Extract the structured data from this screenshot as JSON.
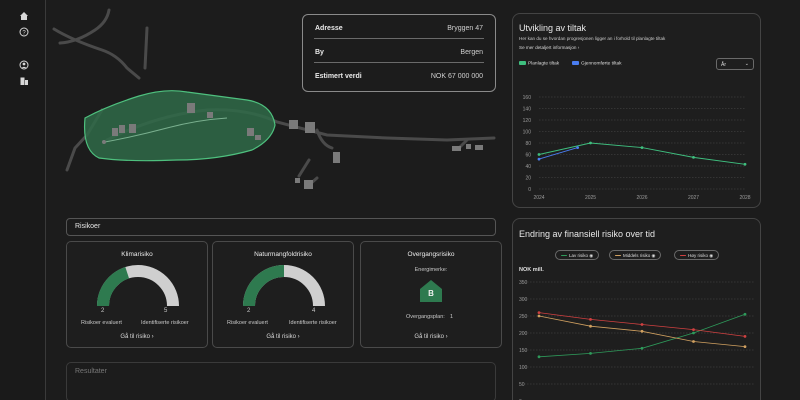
{
  "info": {
    "rows": [
      {
        "key": "Adresse",
        "value": "Bryggen 47"
      },
      {
        "key": "By",
        "value": "Bergen"
      },
      {
        "key": "Estimert verdi",
        "value": "NOK 67 000 000"
      }
    ]
  },
  "progress_panel": {
    "title": "Utvikling av tiltak",
    "subtitle": "Her kan du se hvordan progresjonen ligger an i forhold til planlagte tiltak",
    "link": "Se mer detaljert informasjon",
    "legend": [
      "Planlagte tiltak",
      "Gjennomførte tiltak"
    ],
    "select_value": "År",
    "colors": {
      "planned": "#3fbf7f",
      "done": "#4a7df0"
    }
  },
  "risk_panel": {
    "title": "Endring av finansiell risiko over tid",
    "unit": "NOK mill.",
    "legend": [
      "Lav risiko",
      "Middels risiko",
      "Høy risiko"
    ],
    "colors": {
      "low": "#2e9a5a",
      "medium": "#d0a060",
      "high": "#d04040"
    }
  },
  "risks": {
    "header": "Risikoer",
    "cards": [
      {
        "title": "Klimarisiko",
        "left_value": "2",
        "right_value": "5",
        "left_label": "Risikoer evaluert",
        "right_label": "Identifiserte risikoer",
        "link": "Gå til risiko",
        "fraction": 0.4
      },
      {
        "title": "Naturmangfoldrisiko",
        "left_value": "2",
        "right_value": "4",
        "left_label": "Risikoer evaluert",
        "right_label": "Identifiserte risikoer",
        "link": "Gå til risiko",
        "fraction": 0.5
      },
      {
        "title": "Overgangsrisiko",
        "energy_label": "Energimerke:",
        "energy_value": "B",
        "plan_label": "Overgangsplan:",
        "plan_value": "1",
        "link": "Gå til risiko"
      }
    ]
  },
  "results": {
    "title": "Resultater"
  },
  "icons": [
    "home-icon",
    "help-icon",
    "user-icon",
    "building-icon"
  ],
  "chart_data": [
    {
      "type": "line",
      "x": [
        2024,
        2025,
        2026,
        2027,
        2028
      ],
      "ylim": [
        0,
        160
      ],
      "series": [
        {
          "name": "Planlagte tiltak",
          "x": [
            2024,
            2025,
            2026,
            2027,
            2028
          ],
          "values": [
            60,
            80,
            72,
            55,
            43
          ]
        },
        {
          "name": "Gjennomførte tiltak",
          "x": [
            2024,
            2024.75
          ],
          "values": [
            52,
            72
          ]
        }
      ]
    },
    {
      "type": "line",
      "x": [
        1,
        2,
        3,
        4,
        5
      ],
      "ylim": [
        0,
        350
      ],
      "series": [
        {
          "name": "Lav risiko",
          "values": [
            130,
            140,
            155,
            200,
            255
          ]
        },
        {
          "name": "Middels risiko",
          "values": [
            250,
            220,
            205,
            175,
            160
          ]
        },
        {
          "name": "Høy risiko",
          "values": [
            260,
            240,
            225,
            210,
            190
          ]
        }
      ]
    }
  ]
}
